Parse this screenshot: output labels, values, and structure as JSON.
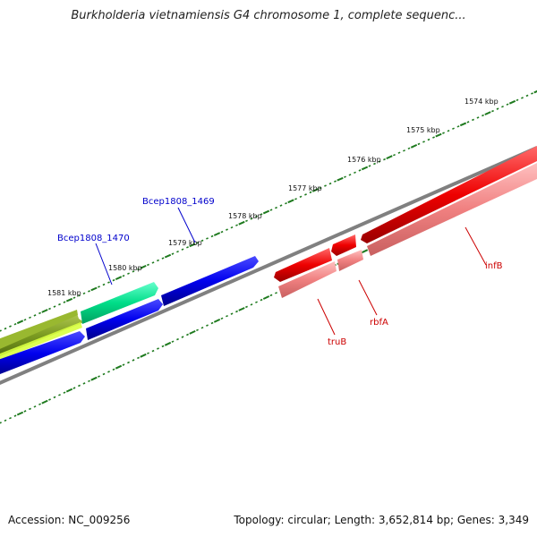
{
  "title": "Burkholderia vietnamiensis G4 chromosome 1, complete sequenc...",
  "footer": {
    "accession": "Accession: NC_009256",
    "summary": "Topology: circular; Length: 3,652,814 bp; Genes: 3,349"
  },
  "ruler": {
    "labels": [
      "1574 kbp",
      "1575 kbp",
      "1576 kbp",
      "1577 kbp",
      "1578 kbp",
      "1579 kbp",
      "1580 kbp",
      "1581 kbp"
    ],
    "tick_color": "#1e7a1e"
  },
  "genes": {
    "forward": [
      {
        "label": "Bcep1808_1469",
        "color": "#0000ee"
      },
      {
        "label": "Bcep1808_1470",
        "color": "#00cc88"
      }
    ],
    "reverse": [
      {
        "label": "infB",
        "color": "#ee0000"
      },
      {
        "label": "rbfA",
        "color": "#ee0000"
      },
      {
        "label": "truB",
        "color": "#ee0000"
      }
    ],
    "forward_label_color": "#0000cc",
    "reverse_label_color": "#cc0000"
  },
  "colors": {
    "backbone": "#808080",
    "forward_gene": "#0000ee",
    "green_gene": "#00dd88",
    "olive_gene": "#7a9a20",
    "reverse_gene": "#ee0000",
    "reverse_shadow": "#f08080"
  }
}
